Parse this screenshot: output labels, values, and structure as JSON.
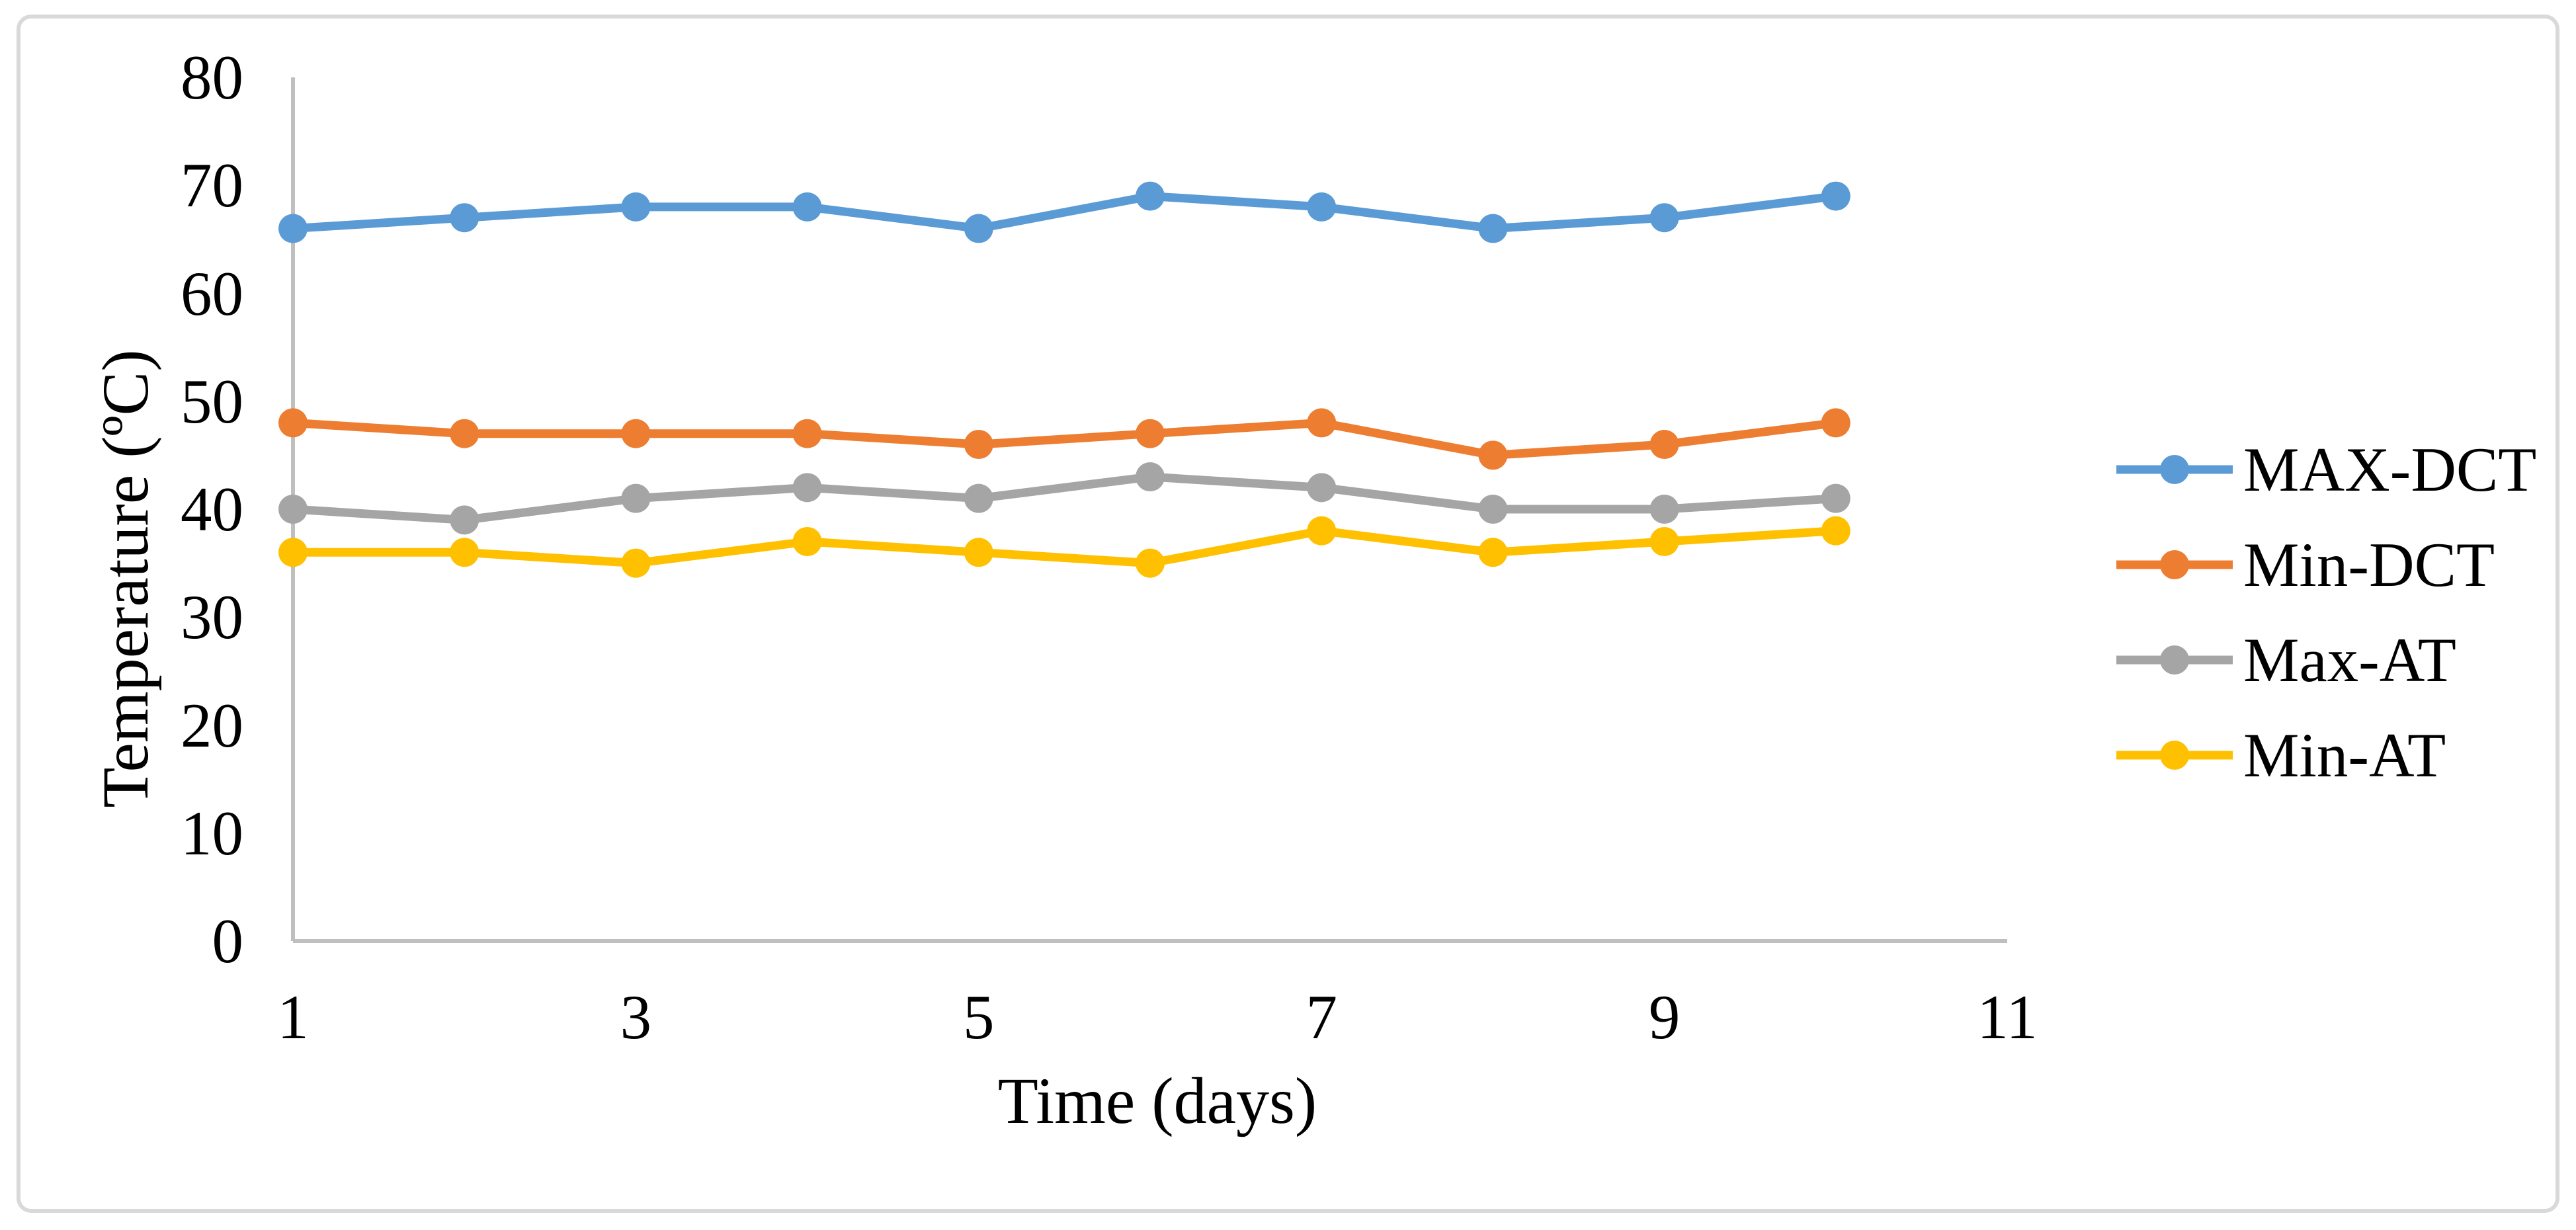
{
  "chart_data": {
    "type": "line",
    "x": [
      1,
      2,
      3,
      4,
      5,
      6,
      7,
      8,
      9,
      10
    ],
    "series": [
      {
        "name": "MAX-DCT",
        "color": "#5B9BD5",
        "values": [
          66,
          67,
          68,
          68,
          66,
          69,
          68,
          66,
          67,
          69
        ]
      },
      {
        "name": "Min-DCT",
        "color": "#ED7D31",
        "values": [
          48,
          47,
          47,
          47,
          46,
          47,
          48,
          45,
          46,
          48
        ]
      },
      {
        "name": "Max-AT",
        "color": "#A5A5A5",
        "values": [
          40,
          39,
          41,
          42,
          41,
          43,
          42,
          40,
          40,
          41
        ]
      },
      {
        "name": "Min-AT",
        "color": "#FFC000",
        "values": [
          36,
          36,
          35,
          37,
          36,
          35,
          38,
          36,
          37,
          38
        ]
      }
    ],
    "title": "",
    "xlabel": "Time (days)",
    "ylabel": "Temperature (ºC)",
    "xlim": [
      1,
      11
    ],
    "ylim": [
      0,
      80
    ],
    "xticks": [
      1,
      3,
      5,
      7,
      9,
      11
    ],
    "yticks": [
      0,
      10,
      20,
      30,
      40,
      50,
      60,
      70,
      80
    ],
    "grid": false,
    "legend_position": "right",
    "axis_color": "#BFBFBF",
    "border_color": "#D9D9D9",
    "text_color": "#000000"
  }
}
